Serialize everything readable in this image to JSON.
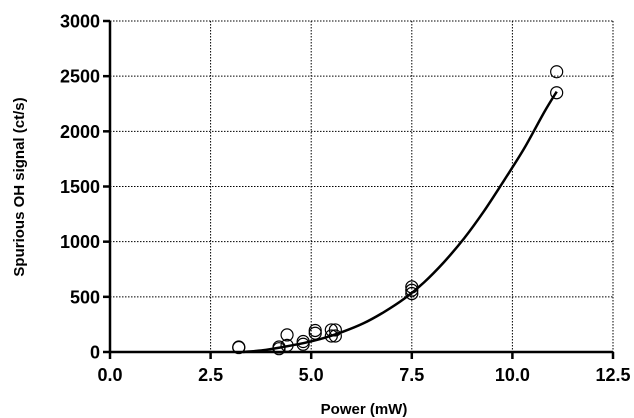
{
  "chart_data": {
    "type": "scatter",
    "xlabel": "Power (mW)",
    "ylabel": "Spurious OH signal (ct/s)",
    "xlim": [
      0,
      12.5
    ],
    "ylim": [
      0,
      3000
    ],
    "xticks": [
      "0.0",
      "2.5",
      "5.0",
      "7.5",
      "10.0",
      "12.5"
    ],
    "yticks": [
      "0",
      "500",
      "1000",
      "1500",
      "2000",
      "2500",
      "3000"
    ],
    "grid": true,
    "series": [
      {
        "kind": "points",
        "marker": "open-circle",
        "x": [
          3.2,
          3.2,
          4.2,
          4.2,
          4.4,
          4.4,
          4.8,
          4.8,
          5.1,
          5.1,
          5.5,
          5.5,
          5.6,
          5.6,
          7.5,
          7.5,
          7.5,
          11.1,
          11.1
        ],
        "y": [
          40,
          45,
          30,
          45,
          60,
          155,
          70,
          95,
          170,
          195,
          145,
          200,
          145,
          200,
          530,
          560,
          590,
          2350,
          2540
        ]
      },
      {
        "kind": "fit-curve",
        "x": [
          3.3,
          3.8,
          4.3,
          4.8,
          5.3,
          5.8,
          6.3,
          6.8,
          7.3,
          7.8,
          8.3,
          8.8,
          9.3,
          9.8,
          10.3,
          10.8,
          11.1
        ],
        "y": [
          0,
          15,
          45,
          80,
          125,
          185,
          260,
          360,
          480,
          630,
          815,
          1030,
          1280,
          1560,
          1850,
          2180,
          2360
        ]
      }
    ]
  }
}
